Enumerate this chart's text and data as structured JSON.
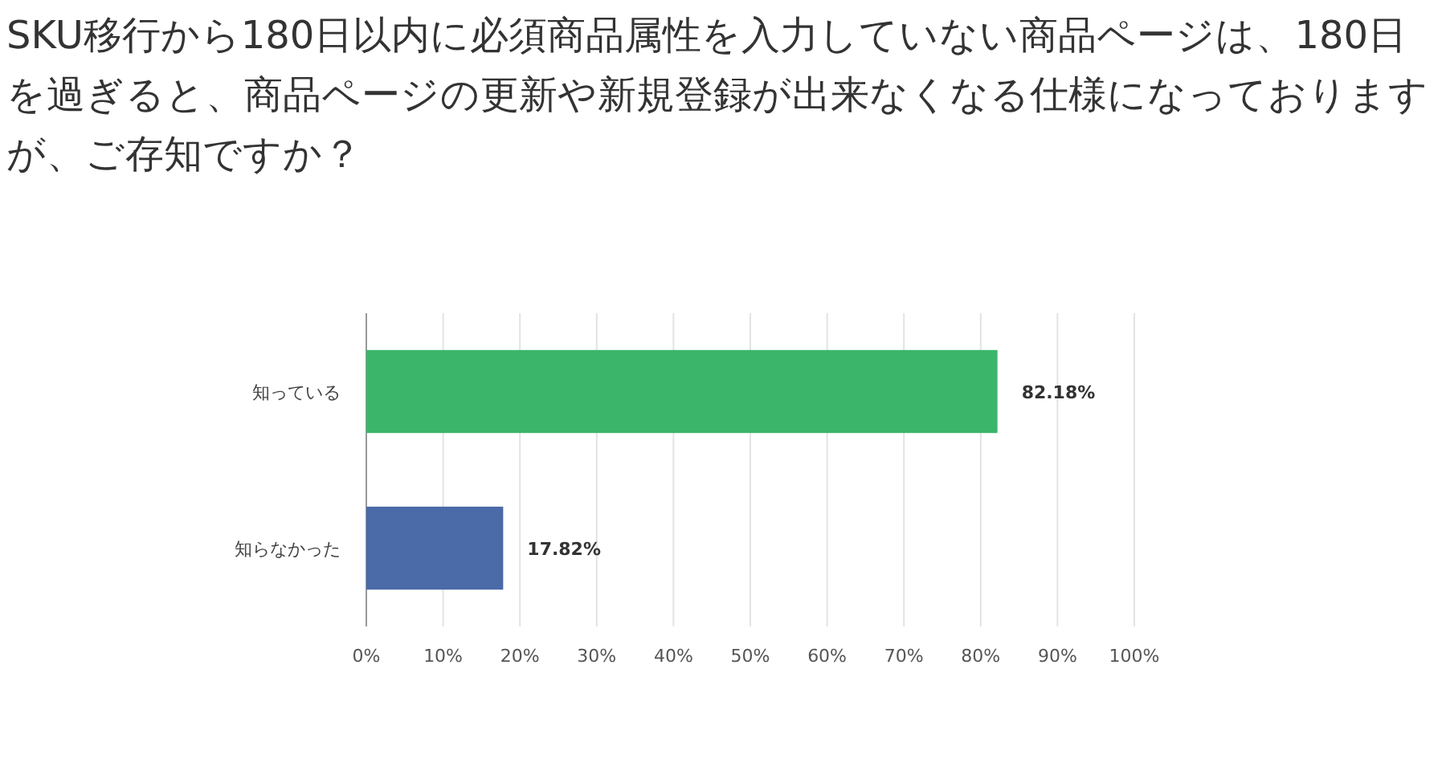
{
  "chart_data": {
    "type": "bar",
    "orientation": "horizontal",
    "title": "SKU移行から180日以内に必須商品属性を入力していない商品ページは、180日を過ぎると、商品ページの更新や新規登録が出来なくなる仕様になっておりますが、ご存知ですか？",
    "categories": [
      "知っている",
      "知らなかった"
    ],
    "values": [
      82.18,
      17.82
    ],
    "colors": [
      "#3bb56a",
      "#4a6aa8"
    ],
    "value_labels": [
      "82.18%",
      "17.82%"
    ],
    "xlim": [
      0,
      100
    ],
    "xticks": [
      {
        "value": 0,
        "label": "0%"
      },
      {
        "value": 10,
        "label": "10%"
      },
      {
        "value": 20,
        "label": "20%"
      },
      {
        "value": 30,
        "label": "30%"
      },
      {
        "value": 40,
        "label": "40%"
      },
      {
        "value": 50,
        "label": "50%"
      },
      {
        "value": 60,
        "label": "60%"
      },
      {
        "value": 70,
        "label": "70%"
      },
      {
        "value": 80,
        "label": "80%"
      },
      {
        "value": 90,
        "label": "90%"
      },
      {
        "value": 100,
        "label": "100%"
      }
    ],
    "grid": "x"
  }
}
